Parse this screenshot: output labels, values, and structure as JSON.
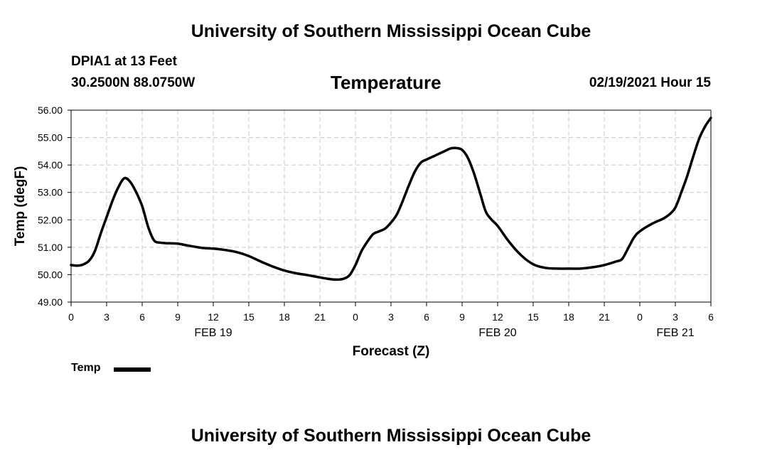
{
  "header": {
    "title": "University of Southern Mississippi Ocean Cube",
    "station": "DPIA1 at 13 Feet",
    "coords": "30.2500N 88.0750W",
    "datetime": "02/19/2021 Hour 15"
  },
  "footer": {
    "title": "University of Southern Mississippi Ocean Cube"
  },
  "legend": {
    "label": "Temp",
    "color": "#000000"
  },
  "chart_data": {
    "type": "line",
    "title": "Temperature",
    "xlabel": "Forecast (Z)",
    "ylabel": "Temp (degF)",
    "ylim": [
      49.0,
      56.0
    ],
    "xlim": [
      0,
      54
    ],
    "y_ticks": [
      "49.00",
      "50.00",
      "51.00",
      "52.00",
      "53.00",
      "54.00",
      "55.00",
      "56.00"
    ],
    "x_ticks": [
      {
        "x": 0,
        "label": "0"
      },
      {
        "x": 3,
        "label": "3"
      },
      {
        "x": 6,
        "label": "6"
      },
      {
        "x": 9,
        "label": "9"
      },
      {
        "x": 12,
        "label": "12"
      },
      {
        "x": 15,
        "label": "15"
      },
      {
        "x": 18,
        "label": "18"
      },
      {
        "x": 21,
        "label": "21"
      },
      {
        "x": 24,
        "label": "0"
      },
      {
        "x": 27,
        "label": "3"
      },
      {
        "x": 30,
        "label": "6"
      },
      {
        "x": 33,
        "label": "9"
      },
      {
        "x": 36,
        "label": "12"
      },
      {
        "x": 39,
        "label": "15"
      },
      {
        "x": 42,
        "label": "18"
      },
      {
        "x": 45,
        "label": "21"
      },
      {
        "x": 48,
        "label": "0"
      },
      {
        "x": 51,
        "label": "3"
      },
      {
        "x": 54,
        "label": "6"
      }
    ],
    "date_labels": [
      {
        "x": 12,
        "label": "FEB 19"
      },
      {
        "x": 36,
        "label": "FEB 20"
      },
      {
        "x": 51,
        "label": "FEB 21"
      }
    ],
    "grid": true,
    "series": [
      {
        "name": "Temp",
        "color": "#000000",
        "x": [
          0,
          0.5,
          1,
          1.5,
          2,
          2.5,
          3,
          3.5,
          4,
          4.5,
          5,
          5.5,
          6,
          6.5,
          7,
          7.5,
          8,
          9,
          10,
          11,
          12,
          13,
          14,
          15,
          16,
          17,
          18,
          19,
          20,
          21,
          22,
          22.5,
          23,
          23.5,
          24,
          24.5,
          25,
          25.5,
          26,
          26.5,
          27,
          27.5,
          28,
          28.5,
          29,
          29.5,
          30,
          30.5,
          31,
          31.5,
          32,
          32.5,
          33,
          33.5,
          34,
          34.5,
          35,
          35.5,
          36,
          37,
          38,
          39,
          40,
          41,
          42,
          43,
          44,
          45,
          46,
          46.5,
          47,
          47.5,
          48,
          49,
          50,
          50.5,
          51,
          51.5,
          52,
          52.5,
          53,
          53.5,
          54
        ],
        "y": [
          50.35,
          50.33,
          50.37,
          50.5,
          50.85,
          51.5,
          52.1,
          52.7,
          53.2,
          53.52,
          53.38,
          53.0,
          52.5,
          51.75,
          51.25,
          51.17,
          51.15,
          51.13,
          51.05,
          50.98,
          50.95,
          50.9,
          50.82,
          50.68,
          50.48,
          50.3,
          50.15,
          50.05,
          49.98,
          49.9,
          49.83,
          49.82,
          49.85,
          49.98,
          50.35,
          50.85,
          51.2,
          51.48,
          51.58,
          51.68,
          51.9,
          52.2,
          52.7,
          53.25,
          53.75,
          54.08,
          54.2,
          54.3,
          54.4,
          54.5,
          54.6,
          54.62,
          54.55,
          54.25,
          53.7,
          53.0,
          52.3,
          52.0,
          51.78,
          51.18,
          50.7,
          50.38,
          50.25,
          50.22,
          50.22,
          50.22,
          50.27,
          50.35,
          50.48,
          50.57,
          50.95,
          51.35,
          51.58,
          51.85,
          52.05,
          52.2,
          52.45,
          53.0,
          53.6,
          54.3,
          54.95,
          55.4,
          55.72
        ]
      }
    ]
  }
}
